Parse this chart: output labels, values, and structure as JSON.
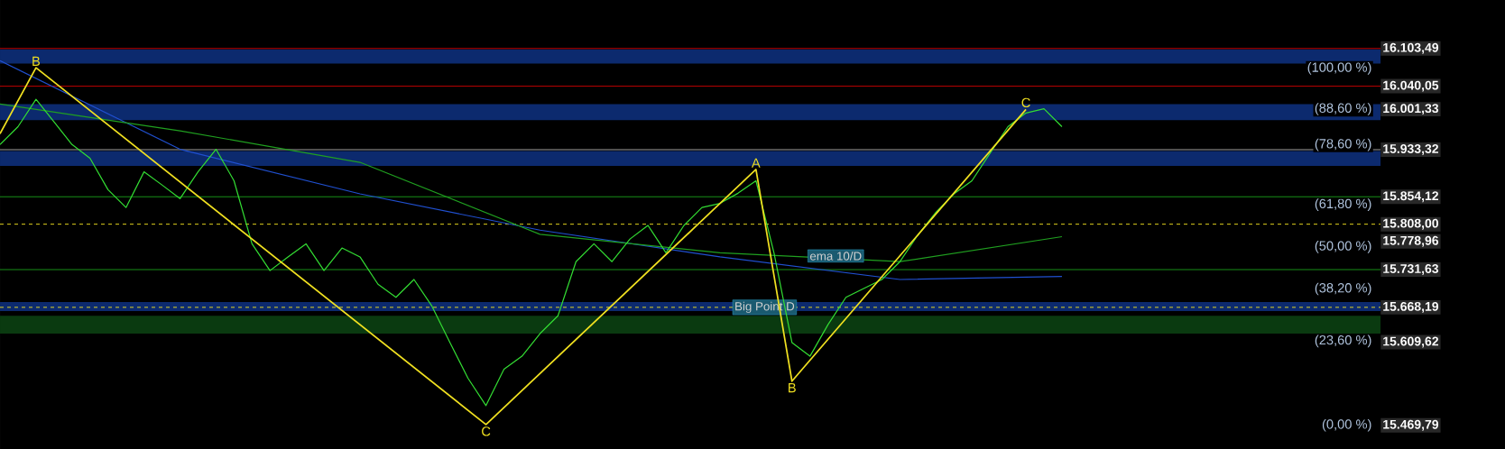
{
  "chart_data": {
    "type": "line",
    "categories": [
      null,
      null,
      null,
      null,
      null,
      null,
      null,
      null,
      null,
      null,
      null,
      null,
      null,
      null,
      null,
      null,
      null,
      null,
      null,
      null,
      null,
      null,
      null,
      null,
      null,
      null,
      null,
      null,
      null,
      null,
      null,
      null,
      null,
      null,
      null,
      null,
      null,
      null,
      null,
      null,
      null,
      null,
      null,
      null,
      null,
      null,
      null,
      null,
      null,
      null,
      null,
      null,
      null,
      null,
      null,
      null,
      null,
      null,
      null,
      null
    ],
    "ylim": [
      15430,
      16185
    ],
    "tick_labels": "y",
    "yticks": [
      {
        "value": 16103.49,
        "label": "16.103,49"
      },
      {
        "value": 16040.05,
        "label": "16.040,05"
      },
      {
        "value": 16001.33,
        "label": "16.001,33"
      },
      {
        "value": 15933.32,
        "label": "15.933,32"
      },
      {
        "value": 15854.12,
        "label": "15.854,12"
      },
      {
        "value": 15808.0,
        "label": "15.808,00"
      },
      {
        "value": 15778.96,
        "label": "15.778,96"
      },
      {
        "value": 15731.63,
        "label": "15.731,63"
      },
      {
        "value": 15668.19,
        "label": "15.668,19"
      },
      {
        "value": 15609.62,
        "label": "15.609,62"
      },
      {
        "value": 15469.79,
        "label": "15.469,79"
      }
    ],
    "y2lim": [
      -6.63,
      119.17
    ],
    "y2ticks": [
      {
        "value": 100,
        "label": "(100,00 %)"
      },
      {
        "value": 88.6,
        "label": "(88,60 %)"
      },
      {
        "value": 78.6,
        "label": "(78,60 %)"
      },
      {
        "value": 61.8,
        "label": "(61,80 %)"
      },
      {
        "value": 50,
        "label": "(50,00 %)"
      },
      {
        "value": 38.2,
        "label": "(38,20 %)"
      },
      {
        "value": 23.6,
        "label": "(23,60 %)"
      },
      {
        "value": 0,
        "label": "(0,00 %)"
      }
    ],
    "bands": [
      {
        "axis": "y",
        "from": 16078,
        "to": 16102,
        "color": "#0c2a6e"
      },
      {
        "axis": "y",
        "from": 15983,
        "to": 16010,
        "color": "#0c2a6e"
      },
      {
        "axis": "y",
        "from": 15906,
        "to": 15931,
        "color": "#0c2a6e"
      },
      {
        "axis": "y",
        "from": 15662,
        "to": 15677,
        "color": "#0c2a6e"
      },
      {
        "axis": "y",
        "from": 15624,
        "to": 15654,
        "color": "#0a3a10"
      }
    ],
    "ref_lines": [
      {
        "axis": "y",
        "value": 16103.49,
        "color": "#cc0000",
        "line_style": "solid"
      },
      {
        "axis": "y",
        "value": 16040.05,
        "color": "#cc0000",
        "line_style": "solid"
      },
      {
        "axis": "y",
        "value": 15933.32,
        "color": "#aaaaaa",
        "line_style": "solid"
      },
      {
        "axis": "y",
        "value": 15854.12,
        "color": "#1a9a1a",
        "line_style": "solid"
      },
      {
        "axis": "y",
        "value": 15731.63,
        "color": "#1a9a1a",
        "line_style": "solid"
      },
      {
        "axis": "y",
        "value": 15808.0,
        "color": "#f0e020",
        "line_style": "dashed"
      },
      {
        "axis": "y",
        "value": 15668.19,
        "color": "#f0e020",
        "line_style": "dashed",
        "label": "Big Point D"
      }
    ],
    "series": [
      {
        "color": "#2050d0",
        "line_style": "solid",
        "values": [
          16083,
          null,
          null,
          null,
          null,
          null,
          null,
          null,
          null,
          null,
          15934,
          null,
          null,
          null,
          null,
          null,
          null,
          null,
          null,
          null,
          15859,
          null,
          null,
          null,
          null,
          null,
          null,
          null,
          null,
          null,
          15798,
          null,
          null,
          null,
          null,
          null,
          null,
          null,
          null,
          null,
          15753,
          null,
          null,
          null,
          null,
          null,
          null,
          null,
          null,
          null,
          15715,
          null,
          null,
          null,
          null,
          null,
          null,
          null,
          null,
          15720
        ]
      },
      {
        "color": "#20a020",
        "line_style": "solid",
        "values": [
          16010,
          null,
          null,
          null,
          null,
          null,
          null,
          null,
          null,
          null,
          15965,
          null,
          null,
          null,
          null,
          null,
          null,
          null,
          null,
          null,
          15912,
          null,
          null,
          null,
          null,
          null,
          null,
          null,
          null,
          null,
          15791,
          null,
          null,
          null,
          null,
          null,
          null,
          null,
          null,
          null,
          15760,
          null,
          null,
          null,
          null,
          null,
          null,
          null,
          null,
          null,
          15745,
          null,
          null,
          null,
          null,
          null,
          null,
          null,
          null,
          15787
        ]
      },
      {
        "color": "#33dd33",
        "line_style": "solid",
        "values": [
          15942,
          15972,
          16018,
          15980,
          15942,
          15919,
          15866,
          15836,
          15896,
          15874,
          15851,
          15896,
          15934,
          15881,
          15775,
          15730,
          15753,
          15775,
          15730,
          15768,
          15753,
          15707,
          15685,
          15715,
          15670,
          15609,
          15549,
          15503,
          15564,
          15586,
          15624,
          15654,
          15745,
          15775,
          15745,
          15783,
          15806,
          15760,
          15806,
          15836,
          15843,
          15860,
          15881,
          15760,
          15609,
          15586,
          15639,
          15685,
          15700,
          15715,
          15745,
          15790,
          15828,
          15859,
          15881,
          15927,
          15972,
          15995,
          16002,
          15972
        ]
      },
      {
        "color": "#f0e020",
        "line_style": "solid",
        "values": [
          15960,
          null,
          16071,
          null,
          null,
          null,
          null,
          null,
          null,
          null,
          null,
          null,
          null,
          null,
          null,
          null,
          null,
          null,
          null,
          null,
          null,
          null,
          null,
          null,
          null,
          null,
          null,
          15471,
          null,
          null,
          null,
          null,
          null,
          null,
          null,
          null,
          null,
          null,
          null,
          null,
          null,
          null,
          15900,
          null,
          15544,
          null,
          null,
          null,
          null,
          null,
          null,
          null,
          null,
          null,
          null,
          null,
          null,
          16001,
          null,
          null
        ]
      }
    ],
    "annotations": [
      {
        "text": "B",
        "y": 16071
      },
      {
        "text": "C",
        "y": 15471
      },
      {
        "text": "A",
        "y": 15900
      },
      {
        "text": "B",
        "y": 15544
      },
      {
        "text": "C",
        "y": 16001
      },
      "ema 10/D"
    ]
  }
}
